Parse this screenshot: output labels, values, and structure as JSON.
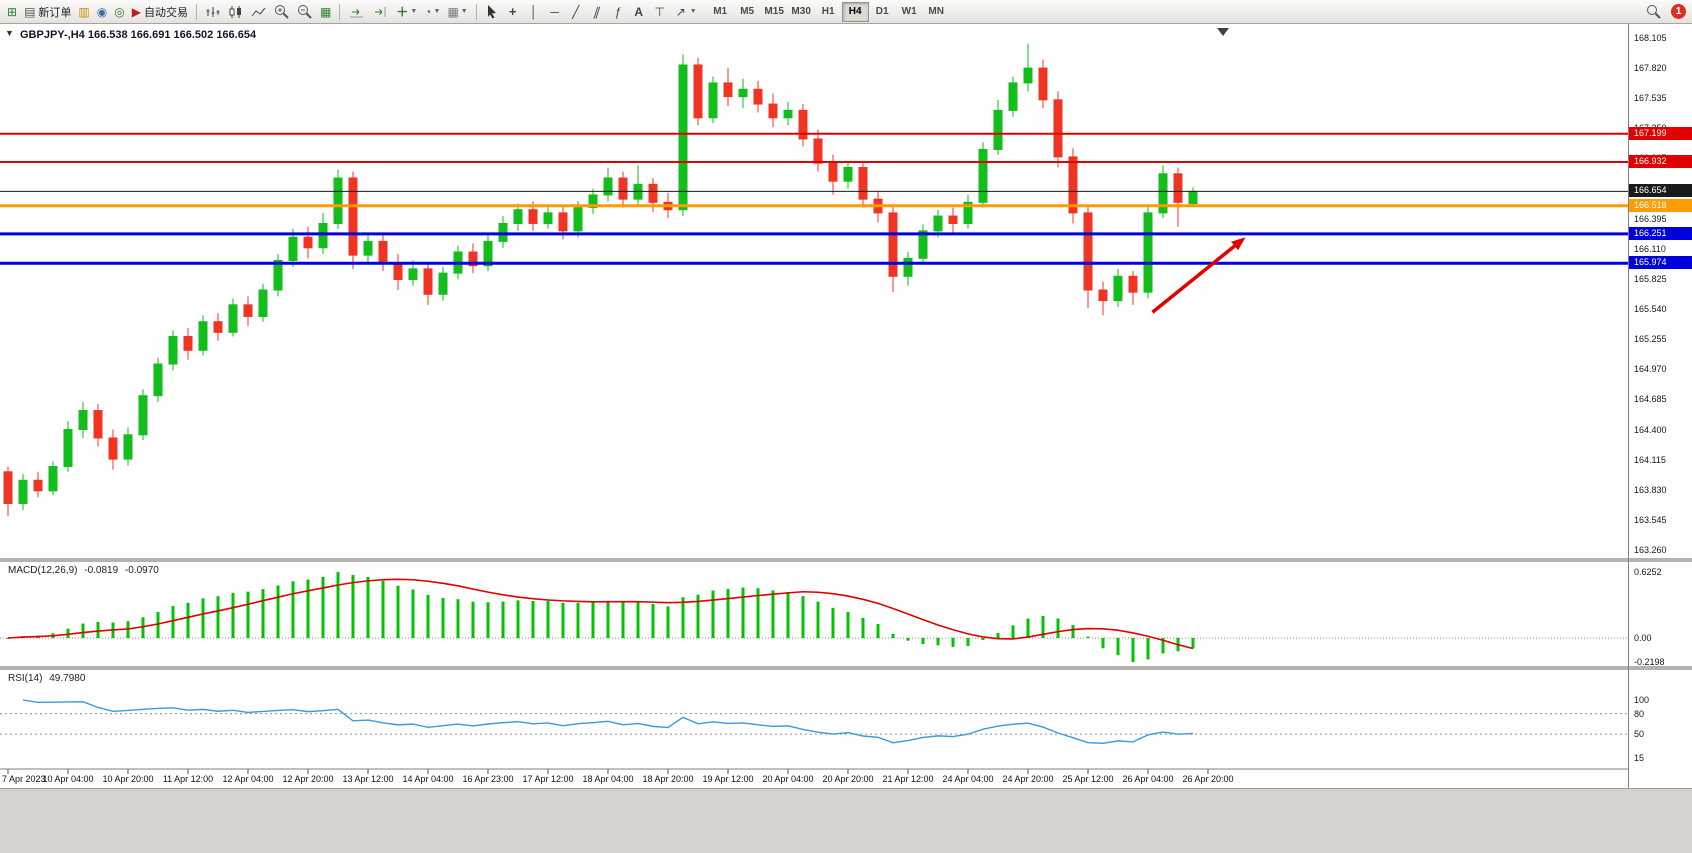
{
  "toolbar": {
    "new_order_label": "新订单",
    "autotrading_label": "自动交易",
    "timeframes": [
      "M1",
      "M5",
      "M15",
      "M30",
      "H1",
      "H4",
      "D1",
      "W1",
      "MN"
    ],
    "active_timeframe": "H4",
    "notification_count": "1"
  },
  "chart": {
    "title": "GBPJPY-,H4 166.538 166.691 166.502 166.654"
  },
  "chart_data": {
    "type": "candlestick",
    "symbol": "GBPJPY-",
    "period": "H4",
    "ohlc_header": {
      "open": "166.538",
      "high": "166.691",
      "low": "166.502",
      "close": "166.654"
    },
    "colors": {
      "bull": "#12bd1c",
      "bear": "#ef3424",
      "macd_hist": "#00c400",
      "macd_signal": "#e00000",
      "rsi_line": "#3a9ade",
      "arrow": "#e00000"
    },
    "y_axis": {
      "max": 168.105,
      "min": 163.26,
      "ticks": [
        "168.105",
        "167.820",
        "167.535",
        "167.250",
        "166.965",
        "166.680",
        "166.395",
        "166.110",
        "165.825",
        "165.540",
        "165.255",
        "164.970",
        "164.685",
        "164.400",
        "164.115",
        "163.830",
        "163.545",
        "163.260"
      ]
    },
    "x_labels": [
      "7 Apr 2023",
      "10 Apr 04:00",
      "10 Apr 20:00",
      "11 Apr 12:00",
      "12 Apr 04:00",
      "12 Apr 20:00",
      "13 Apr 12:00",
      "14 Apr 04:00",
      "16 Apr 23:00",
      "17 Apr 12:00",
      "18 Apr 04:00",
      "18 Apr 20:00",
      "19 Apr 12:00",
      "20 Apr 04:00",
      "20 Apr 20:00",
      "21 Apr 12:00",
      "24 Apr 04:00",
      "24 Apr 20:00",
      "25 Apr 12:00",
      "26 Apr 04:00",
      "26 Apr 20:00"
    ],
    "x_label_every": 4,
    "candles": [
      [
        164.0,
        164.05,
        163.58,
        163.7
      ],
      [
        163.7,
        163.98,
        163.64,
        163.92
      ],
      [
        163.92,
        164.0,
        163.76,
        163.82
      ],
      [
        163.82,
        164.1,
        163.78,
        164.05
      ],
      [
        164.05,
        164.48,
        164.0,
        164.4
      ],
      [
        164.4,
        164.66,
        164.32,
        164.58
      ],
      [
        164.58,
        164.64,
        164.24,
        164.32
      ],
      [
        164.32,
        164.4,
        164.02,
        164.12
      ],
      [
        164.12,
        164.42,
        164.06,
        164.35
      ],
      [
        164.35,
        164.78,
        164.3,
        164.72
      ],
      [
        164.72,
        165.08,
        164.66,
        165.02
      ],
      [
        165.02,
        165.34,
        164.96,
        165.28
      ],
      [
        165.28,
        165.36,
        165.06,
        165.15
      ],
      [
        165.15,
        165.48,
        165.1,
        165.42
      ],
      [
        165.42,
        165.5,
        165.24,
        165.32
      ],
      [
        165.32,
        165.64,
        165.28,
        165.58
      ],
      [
        165.58,
        165.66,
        165.38,
        165.47
      ],
      [
        165.47,
        165.78,
        165.42,
        165.72
      ],
      [
        165.72,
        166.06,
        165.66,
        166.0
      ],
      [
        166.0,
        166.3,
        165.94,
        166.22
      ],
      [
        166.22,
        166.32,
        166.02,
        166.12
      ],
      [
        166.12,
        166.45,
        166.06,
        166.35
      ],
      [
        166.35,
        166.86,
        166.3,
        166.78
      ],
      [
        166.78,
        166.84,
        165.92,
        166.05
      ],
      [
        166.05,
        166.26,
        165.98,
        166.18
      ],
      [
        166.18,
        166.24,
        165.9,
        165.98
      ],
      [
        165.98,
        166.06,
        165.72,
        165.82
      ],
      [
        165.82,
        166.0,
        165.76,
        165.92
      ],
      [
        165.92,
        165.98,
        165.58,
        165.68
      ],
      [
        165.68,
        165.94,
        165.62,
        165.88
      ],
      [
        165.88,
        166.14,
        165.82,
        166.08
      ],
      [
        166.08,
        166.16,
        165.88,
        165.95
      ],
      [
        165.95,
        166.24,
        165.9,
        166.18
      ],
      [
        166.18,
        166.42,
        166.12,
        166.35
      ],
      [
        166.35,
        166.54,
        166.28,
        166.48
      ],
      [
        166.48,
        166.56,
        166.28,
        166.35
      ],
      [
        166.35,
        166.52,
        166.3,
        166.45
      ],
      [
        166.45,
        166.52,
        166.2,
        166.28
      ],
      [
        166.28,
        166.56,
        166.22,
        166.5
      ],
      [
        166.5,
        166.68,
        166.44,
        166.62
      ],
      [
        166.62,
        166.88,
        166.56,
        166.78
      ],
      [
        166.78,
        166.84,
        166.5,
        166.58
      ],
      [
        166.58,
        166.9,
        166.52,
        166.72
      ],
      [
        166.72,
        166.78,
        166.46,
        166.55
      ],
      [
        166.55,
        166.64,
        166.4,
        166.48
      ],
      [
        166.48,
        167.95,
        166.42,
        167.85
      ],
      [
        167.85,
        167.92,
        167.28,
        167.35
      ],
      [
        167.35,
        167.74,
        167.3,
        167.68
      ],
      [
        167.68,
        167.82,
        167.46,
        167.55
      ],
      [
        167.55,
        167.72,
        167.44,
        167.62
      ],
      [
        167.62,
        167.7,
        167.4,
        167.48
      ],
      [
        167.48,
        167.58,
        167.26,
        167.35
      ],
      [
        167.35,
        167.5,
        167.28,
        167.42
      ],
      [
        167.42,
        167.48,
        167.08,
        167.15
      ],
      [
        167.15,
        167.24,
        166.84,
        166.92
      ],
      [
        166.92,
        167.0,
        166.62,
        166.75
      ],
      [
        166.75,
        166.94,
        166.68,
        166.88
      ],
      [
        166.88,
        166.94,
        166.5,
        166.58
      ],
      [
        166.58,
        166.66,
        166.36,
        166.45
      ],
      [
        166.45,
        166.52,
        165.7,
        165.85
      ],
      [
        165.85,
        166.08,
        165.76,
        166.02
      ],
      [
        166.02,
        166.34,
        165.96,
        166.28
      ],
      [
        166.28,
        166.48,
        166.22,
        166.42
      ],
      [
        166.42,
        166.5,
        166.26,
        166.35
      ],
      [
        166.35,
        166.62,
        166.3,
        166.55
      ],
      [
        166.55,
        167.12,
        166.5,
        167.05
      ],
      [
        167.05,
        167.52,
        167.0,
        167.42
      ],
      [
        167.42,
        167.74,
        167.36,
        167.68
      ],
      [
        167.68,
        168.05,
        167.6,
        167.82
      ],
      [
        167.82,
        167.9,
        167.44,
        167.52
      ],
      [
        167.52,
        167.6,
        166.88,
        166.98
      ],
      [
        166.98,
        167.06,
        166.35,
        166.45
      ],
      [
        166.45,
        166.52,
        165.55,
        165.72
      ],
      [
        165.72,
        165.8,
        165.48,
        165.62
      ],
      [
        165.62,
        165.92,
        165.56,
        165.85
      ],
      [
        165.85,
        165.9,
        165.58,
        165.7
      ],
      [
        165.7,
        166.52,
        165.64,
        166.45
      ],
      [
        166.45,
        166.9,
        166.4,
        166.82
      ],
      [
        166.82,
        166.88,
        166.32,
        166.55
      ],
      [
        166.538,
        166.691,
        166.502,
        166.654
      ]
    ],
    "hlines": [
      {
        "price": 167.199,
        "label": "167.199",
        "color": "#e00000",
        "width": 2
      },
      {
        "price": 166.932,
        "label": "166.932",
        "color": "#e00000",
        "width": 2
      },
      {
        "price": 166.654,
        "label": "166.654",
        "color": "#1a1a1a",
        "width": 1
      },
      {
        "price": 166.518,
        "label": "166.518",
        "color": "#ff9c00",
        "width": 3
      },
      {
        "price": 166.251,
        "label": "166.251",
        "color": "#0000dd",
        "width": 3
      },
      {
        "price": 165.974,
        "label": "165.974",
        "color": "#0000dd",
        "width": 3
      }
    ],
    "arrow": {
      "from_bar": 76.3,
      "from_price": 165.51,
      "to_bar": 82.5,
      "to_price": 166.22,
      "color": "#e00000"
    },
    "shift_marker_bar": 81,
    "indicators": {
      "macd": {
        "label": "MACD(12,26,9)",
        "value_main": "-0.0819",
        "value_signal": "-0.0970",
        "fast": 12,
        "slow": 26,
        "signal": 9,
        "scale_ticks": [
          "0.6252",
          "0.00",
          "-0.2198"
        ],
        "scale_vals": [
          0.6252,
          0,
          -0.2198
        ]
      },
      "rsi": {
        "label": "RSI(14)",
        "value": "49.7980",
        "period": 14,
        "scale_ticks": [
          "100",
          "80",
          "50",
          "15"
        ],
        "scale_vals": [
          100,
          80,
          50,
          15
        ],
        "levels": [
          80,
          50
        ]
      }
    }
  }
}
